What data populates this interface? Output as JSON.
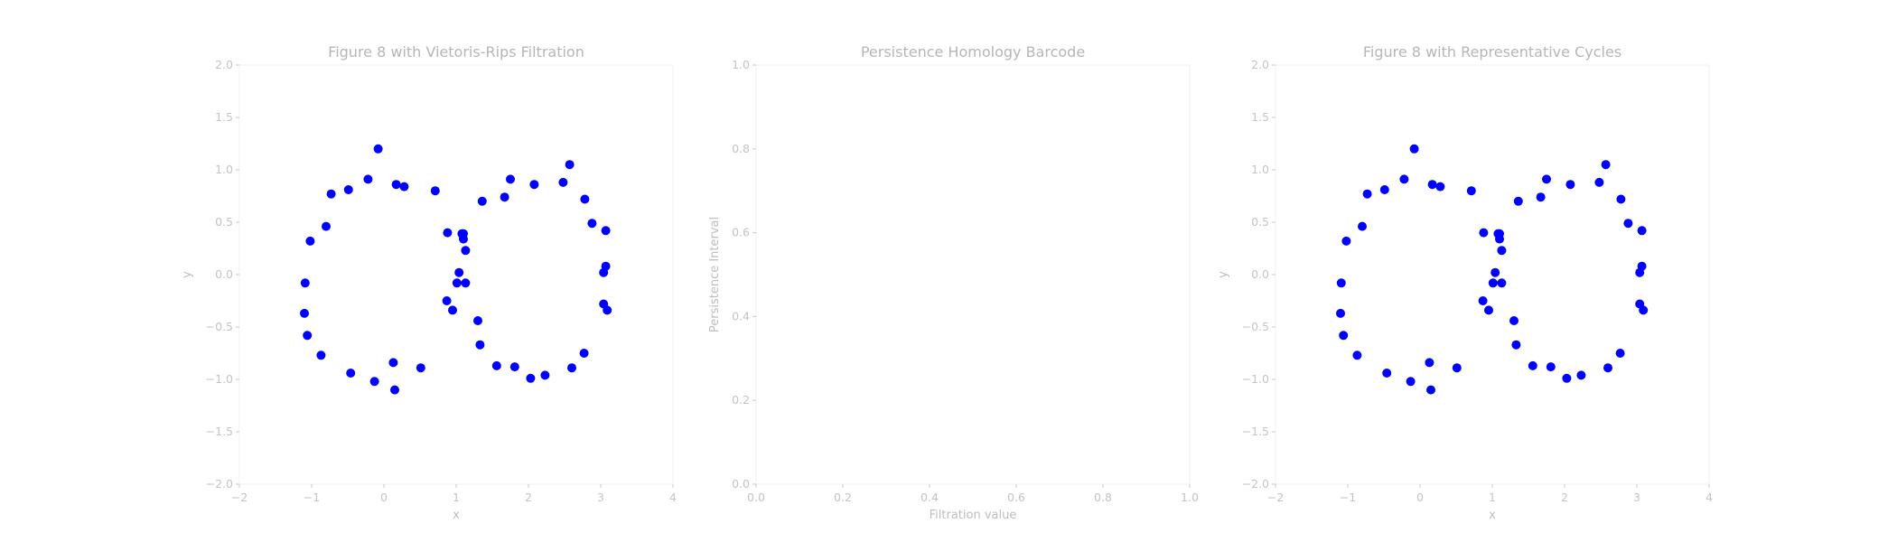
{
  "colors": {
    "point": "#0000ff",
    "text": "#b6b6b6",
    "tick": "#c4c4c4"
  },
  "chart_data": [
    {
      "type": "scatter",
      "title": "Figure 8 with Vietoris-Rips Filtration",
      "xlabel": "x",
      "ylabel": "y",
      "xlim": [
        -2,
        4
      ],
      "ylim": [
        -2.0,
        2.0
      ],
      "xticks": [
        "−2",
        "−1",
        "0",
        "1",
        "2",
        "3",
        "4"
      ],
      "yticks": [
        "−2.0",
        "−1.5",
        "−1.0",
        "−0.5",
        "0.0",
        "0.5",
        "1.0",
        "1.5",
        "2.0"
      ],
      "grid": false,
      "series": [
        {
          "color": "#0000ff",
          "x": [
            -0.08,
            0.17,
            0.28,
            -0.22,
            -0.49,
            -0.73,
            -0.8,
            -1.02,
            -1.09,
            -1.1,
            -1.06,
            -0.87,
            -0.46,
            -0.13,
            0.13,
            0.15,
            0.51,
            0.71,
            0.88,
            1.04,
            1.1,
            1.08,
            0.87,
            0.95,
            1.01,
            1.13,
            1.13,
            1.1,
            1.36,
            1.67,
            1.75,
            2.08,
            2.48,
            2.57,
            2.78,
            2.88,
            3.07,
            3.04,
            3.07,
            3.04,
            3.09,
            2.77,
            2.6,
            2.23,
            2.03,
            1.81,
            1.56,
            1.33,
            1.3
          ],
          "y": [
            1.2,
            0.86,
            0.84,
            0.91,
            0.81,
            0.77,
            0.46,
            0.32,
            -0.08,
            -0.37,
            -0.58,
            -0.77,
            -0.94,
            -1.02,
            -0.84,
            -1.1,
            -0.89,
            0.8,
            0.4,
            0.02,
            0.34,
            0.39,
            -0.25,
            -0.34,
            -0.08,
            -0.08,
            0.23,
            0.39,
            0.7,
            0.74,
            0.91,
            0.86,
            0.88,
            1.05,
            0.72,
            0.49,
            0.42,
            0.02,
            0.08,
            -0.28,
            -0.34,
            -0.75,
            -0.89,
            -0.96,
            -0.99,
            -0.88,
            -0.87,
            -0.67,
            -0.44
          ]
        }
      ]
    },
    {
      "type": "bar",
      "title": "Persistence Homology Barcode",
      "xlabel": "Filtration value",
      "ylabel": "Persistence Interval",
      "xlim": [
        0.0,
        1.0
      ],
      "ylim": [
        0.0,
        1.0
      ],
      "xticks": [
        "0.0",
        "0.2",
        "0.4",
        "0.6",
        "0.8",
        "1.0"
      ],
      "yticks": [
        "0.0",
        "0.2",
        "0.4",
        "0.6",
        "0.8",
        "1.0"
      ],
      "grid": false,
      "series": []
    },
    {
      "type": "scatter",
      "title": "Figure 8 with Representative Cycles",
      "xlabel": "x",
      "ylabel": "y",
      "xlim": [
        -2,
        4
      ],
      "ylim": [
        -2.0,
        2.0
      ],
      "xticks": [
        "−2",
        "−1",
        "0",
        "1",
        "2",
        "3",
        "4"
      ],
      "yticks": [
        "−2.0",
        "−1.5",
        "−1.0",
        "−0.5",
        "0.0",
        "0.5",
        "1.0",
        "1.5",
        "2.0"
      ],
      "grid": false,
      "series": [
        {
          "color": "#0000ff",
          "x": [
            -0.08,
            0.17,
            0.28,
            -0.22,
            -0.49,
            -0.73,
            -0.8,
            -1.02,
            -1.09,
            -1.1,
            -1.06,
            -0.87,
            -0.46,
            -0.13,
            0.13,
            0.15,
            0.51,
            0.71,
            0.88,
            1.04,
            1.1,
            1.08,
            0.87,
            0.95,
            1.01,
            1.13,
            1.13,
            1.1,
            1.36,
            1.67,
            1.75,
            2.08,
            2.48,
            2.57,
            2.78,
            2.88,
            3.07,
            3.04,
            3.07,
            3.04,
            3.09,
            2.77,
            2.6,
            2.23,
            2.03,
            1.81,
            1.56,
            1.33,
            1.3
          ],
          "y": [
            1.2,
            0.86,
            0.84,
            0.91,
            0.81,
            0.77,
            0.46,
            0.32,
            -0.08,
            -0.37,
            -0.58,
            -0.77,
            -0.94,
            -1.02,
            -0.84,
            -1.1,
            -0.89,
            0.8,
            0.4,
            0.02,
            0.34,
            0.39,
            -0.25,
            -0.34,
            -0.08,
            -0.08,
            0.23,
            0.39,
            0.7,
            0.74,
            0.91,
            0.86,
            0.88,
            1.05,
            0.72,
            0.49,
            0.42,
            0.02,
            0.08,
            -0.28,
            -0.34,
            -0.75,
            -0.89,
            -0.96,
            -0.99,
            -0.88,
            -0.87,
            -0.67,
            -0.44
          ]
        }
      ]
    }
  ]
}
